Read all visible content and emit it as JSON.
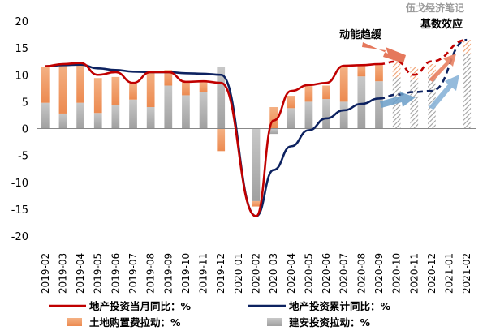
{
  "watermark": "伍戈经济笔记",
  "annotations": {
    "left": "动能趋缓",
    "right": "基数效应"
  },
  "legend": {
    "monthly": "地产投资当月同比：%",
    "cumulative": "地产投资累计同比：%",
    "land": "土地购置费拉动：%",
    "construction": "建安投资拉动：%"
  },
  "colors": {
    "monthly_line": "#c00000",
    "cumulative_line": "#0d2260",
    "land_bar": "#f0a070",
    "construction_bar": "#b0b0b0",
    "arrow_red": "#e06040",
    "arrow_blue": "#6a9ec8"
  },
  "chart_data": {
    "type": "bar",
    "categories": [
      "2019-02",
      "2019-03",
      "2019-04",
      "2019-05",
      "2019-06",
      "2019-07",
      "2019-08",
      "2019-09",
      "2019-10",
      "2019-11",
      "2019-12",
      "2020-01",
      "2020-02",
      "2020-03",
      "2020-04",
      "2020-05",
      "2020-06",
      "2020-07",
      "2020-08",
      "2020-09",
      "2020-10",
      "2020-11",
      "2020-12",
      "2021-01",
      "2021-02"
    ],
    "ylim": [
      -20,
      20
    ],
    "yticks": [
      -20,
      -15,
      -10,
      -5,
      0,
      5,
      10,
      15,
      20
    ],
    "forecast_from_index": 20,
    "series": [
      {
        "name": "建安投资拉动：%",
        "kind": "bar",
        "values": [
          4.8,
          2.8,
          4.8,
          2.9,
          4.3,
          5.4,
          4.0,
          8.0,
          6.2,
          6.8,
          11.5,
          null,
          -13.5,
          -1.0,
          3.8,
          5.0,
          5.5,
          5.0,
          9.7,
          8.8,
          9.5,
          9.0,
          10.0,
          null,
          14.0
        ]
      },
      {
        "name": "土地购置费拉动：%",
        "kind": "bar",
        "values": [
          6.7,
          9.2,
          7.2,
          6.5,
          5.3,
          3.0,
          6.7,
          2.9,
          2.7,
          1.8,
          -4.2,
          null,
          -1.0,
          4.0,
          2.3,
          2.9,
          2.5,
          6.7,
          2.0,
          3.3,
          3.0,
          2.5,
          2.0,
          null,
          2.5
        ]
      },
      {
        "name": "地产投资当月同比：%",
        "kind": "line",
        "values": [
          11.6,
          12.0,
          12.2,
          10.0,
          10.5,
          8.5,
          10.5,
          10.5,
          8.7,
          8.8,
          8.5,
          null,
          -16.3,
          1.5,
          7.0,
          8.1,
          8.5,
          11.7,
          11.8,
          12.0,
          12.5,
          10.0,
          12.5,
          null,
          16.5
        ]
      },
      {
        "name": "地产投资累计同比：%",
        "kind": "line",
        "values": [
          11.6,
          11.8,
          11.9,
          11.2,
          10.9,
          10.6,
          10.5,
          10.5,
          10.3,
          10.2,
          10.0,
          null,
          -16.3,
          -7.7,
          -3.3,
          -0.3,
          1.9,
          3.4,
          4.6,
          5.6,
          6.3,
          6.8,
          7.0,
          null,
          16.5
        ]
      }
    ]
  }
}
